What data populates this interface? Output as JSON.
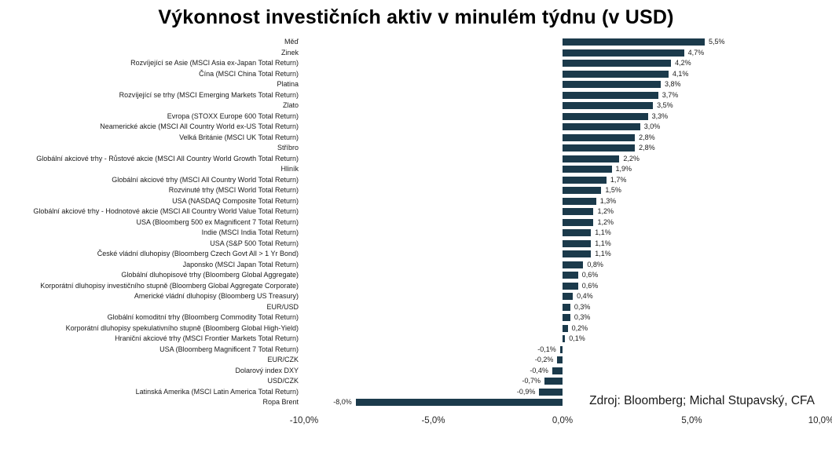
{
  "page": {
    "background": "#ffffff"
  },
  "chart_data": {
    "type": "bar",
    "orientation": "horizontal",
    "title": "Výkonnost investičních aktiv v minulém týdnu (v USD)",
    "categories": [
      "Měď",
      "Zinek",
      "Rozvíjející se Asie (MSCI Asia ex-Japan Total Return)",
      "Čína (MSCI China Total Return)",
      "Platina",
      "Rozvíjející se trhy (MSCI Emerging Markets Total Return)",
      "Zlato",
      "Evropa (STOXX Europe 600 Total Return)",
      "Neamerické akcie (MSCI All Country World ex-US Total Return)",
      "Velká Británie (MSCI UK Total Return)",
      "Stříbro",
      "Globální akciové trhy - Růstové akcie (MSCI All Country World Growth Total Return)",
      "Hliník",
      "Globální akciové trhy (MSCI All Country World Total Return)",
      "Rozvinuté trhy (MSCI World Total Return)",
      "USA (NASDAQ Composite Total Return)",
      "Globální akciové trhy - Hodnotové akcie (MSCI All Country World Value Total Return)",
      "USA (Bloomberg 500 ex Magnificent 7 Total Return)",
      "Indie (MSCI India Total Return)",
      "USA (S&P 500 Total Return)",
      "České vládní dluhopisy (Bloomberg Czech Govt All > 1 Yr Bond)",
      "Japonsko (MSCI Japan Total Return)",
      "Globální dluhopisové trhy (Bloomberg Global Aggregate)",
      "Korporátní dluhopisy investičního stupně (Bloomberg Global Aggregate Corporate)",
      "Americké vládní dluhopisy (Bloomberg US Treasury)",
      "EUR/USD",
      "Globální komoditní trhy (Bloomberg Commodity Total Return)",
      "Korporátní dluhopisy spekulativního stupně (Bloomberg Global High-Yield)",
      "Hraniční akciové trhy (MSCI Frontier Markets Total Return)",
      "USA (Bloomberg Magnificent 7 Total Return)",
      "EUR/CZK",
      "Dolarový index DXY",
      "USD/CZK",
      "Latinská Amerika (MSCI Latin America Total Return)",
      "Ropa Brent"
    ],
    "values": [
      5.5,
      4.7,
      4.2,
      4.1,
      3.8,
      3.7,
      3.5,
      3.3,
      3.0,
      2.8,
      2.8,
      2.2,
      1.9,
      1.7,
      1.5,
      1.3,
      1.2,
      1.2,
      1.1,
      1.1,
      1.1,
      0.8,
      0.6,
      0.6,
      0.4,
      0.3,
      0.3,
      0.2,
      0.1,
      -0.1,
      -0.2,
      -0.4,
      -0.7,
      -0.9,
      -8.0
    ],
    "value_labels": [
      "5,5%",
      "4,7%",
      "4,2%",
      "4,1%",
      "3,8%",
      "3,7%",
      "3,5%",
      "3,3%",
      "3,0%",
      "2,8%",
      "2,8%",
      "2,2%",
      "1,9%",
      "1,7%",
      "1,5%",
      "1,3%",
      "1,2%",
      "1,2%",
      "1,1%",
      "1,1%",
      "1,1%",
      "0,8%",
      "0,6%",
      "0,6%",
      "0,4%",
      "0,3%",
      "0,3%",
      "0,2%",
      "0,1%",
      "-0,1%",
      "-0,2%",
      "-0,4%",
      "-0,7%",
      "-0,9%",
      "-8,0%"
    ],
    "xlim": [
      -10,
      10
    ],
    "x_tick_values": [
      -10,
      -5,
      0,
      5,
      10
    ],
    "x_tick_labels": [
      "-10,0%",
      "-5,0%",
      "0,0%",
      "5,0%",
      "10,0%"
    ],
    "bar_color": "#1b3a4b",
    "grid": "off",
    "legend": "none",
    "source_note": "Zdroj: Bloomberg; Michal Stupavský, CFA"
  }
}
